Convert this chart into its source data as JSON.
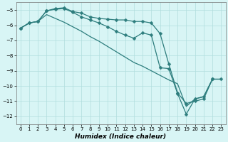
{
  "xlabel": "Humidex (Indice chaleur)",
  "bg_color": "#d8f5f5",
  "grid_color": "#b0dede",
  "line_color": "#2d7d7d",
  "xlim": [
    -0.5,
    23.5
  ],
  "ylim": [
    -12.5,
    -4.5
  ],
  "yticks": [
    -12,
    -11,
    -10,
    -9,
    -8,
    -7,
    -6,
    -5
  ],
  "xticks": [
    0,
    1,
    2,
    3,
    4,
    5,
    6,
    7,
    8,
    9,
    10,
    11,
    12,
    13,
    14,
    15,
    16,
    17,
    18,
    19,
    20,
    21,
    22,
    23
  ],
  "line1_x": [
    0,
    1,
    2,
    3,
    4,
    5,
    6,
    7,
    8,
    9,
    10,
    11,
    12,
    13,
    14,
    15,
    16,
    17,
    18,
    19,
    20,
    21,
    22,
    23
  ],
  "line1_y": [
    -6.2,
    -5.85,
    -5.75,
    -5.05,
    -4.9,
    -4.85,
    -5.1,
    -5.2,
    -5.45,
    -5.55,
    -5.6,
    -5.65,
    -5.65,
    -5.75,
    -5.75,
    -5.85,
    -6.55,
    -8.55,
    -10.45,
    -11.15,
    -11.0,
    -10.85,
    -9.55,
    null
  ],
  "line2_x": [
    0,
    1,
    2,
    3,
    4,
    5,
    6,
    7,
    8,
    9,
    10,
    11,
    12,
    13,
    14,
    15,
    16,
    17,
    18,
    19,
    20,
    21,
    22,
    23
  ],
  "line2_y": [
    -6.2,
    -5.85,
    -5.75,
    -5.3,
    -5.55,
    -5.8,
    -6.1,
    -6.4,
    -6.75,
    -7.05,
    -7.4,
    -7.75,
    -8.1,
    -8.45,
    -8.7,
    -9.0,
    -9.3,
    -9.6,
    -9.85,
    -11.35,
    -10.85,
    -10.7,
    -9.55,
    -9.55
  ],
  "line3_x": [
    0,
    1,
    2,
    3,
    4,
    5,
    6,
    7,
    8,
    9,
    10,
    11,
    12,
    13,
    14,
    15,
    16,
    17,
    18,
    19,
    20,
    21,
    22,
    23
  ],
  "line3_y": [
    -6.2,
    -5.85,
    -5.75,
    -5.05,
    -4.95,
    -4.9,
    -5.15,
    -5.45,
    -5.65,
    -5.85,
    -6.1,
    -6.4,
    -6.65,
    -6.85,
    -6.5,
    -6.65,
    -8.8,
    -8.85,
    -10.5,
    -11.85,
    -10.85,
    -10.7,
    -9.55,
    -9.55
  ],
  "marker_size": 2.5,
  "linewidth": 0.9,
  "tick_fontsize": 5.0,
  "xlabel_fontsize": 6.5
}
